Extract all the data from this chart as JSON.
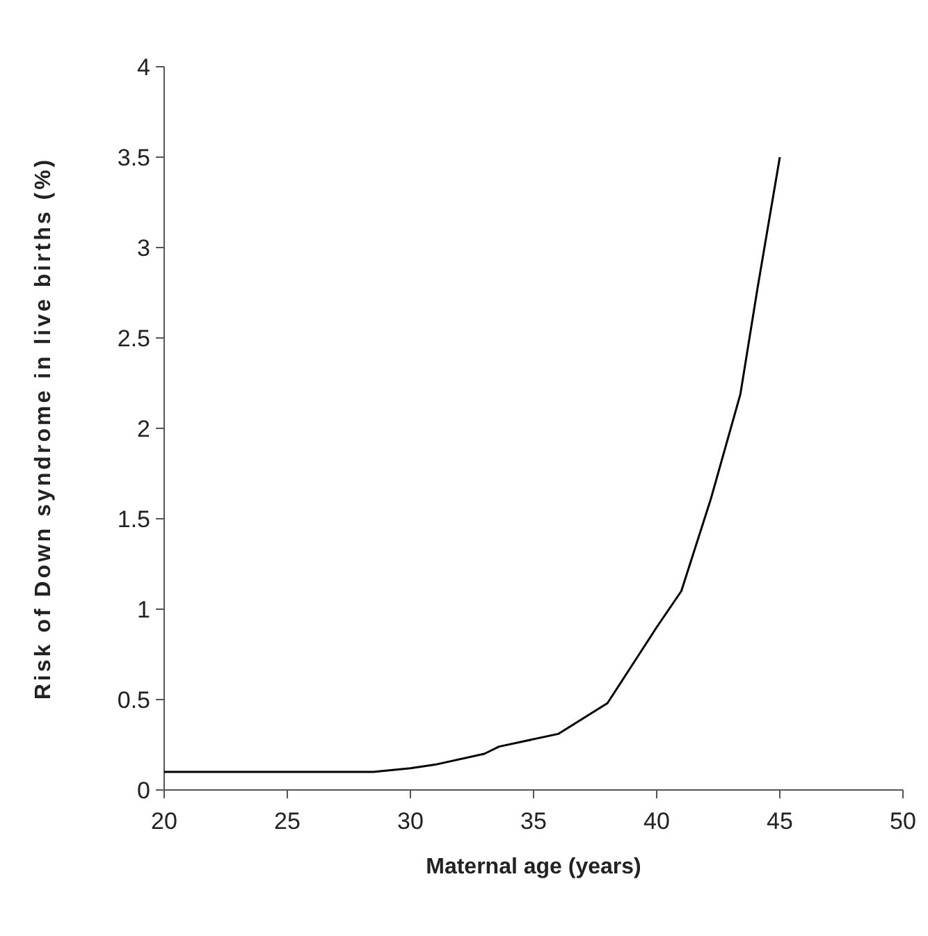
{
  "chart_data": {
    "type": "line",
    "xlabel": "Maternal age (years)",
    "ylabel": "Risk of Down syndrome in live births (%)",
    "x": [
      20,
      28.5,
      30,
      31,
      33,
      33.6,
      36,
      38,
      40,
      41,
      42.2,
      43.4,
      44.1,
      45
    ],
    "series": [
      {
        "color": "#000000",
        "values": [
          0.1,
          0.1,
          0.12,
          0.14,
          0.2,
          0.24,
          0.31,
          0.48,
          0.9,
          1.1,
          1.61,
          2.19,
          2.78,
          3.5
        ]
      }
    ],
    "xlim": [
      20,
      50
    ],
    "xticks": [
      20,
      25,
      30,
      35,
      40,
      45,
      50
    ],
    "ylim": [
      0,
      4
    ],
    "yticks": [
      0,
      0.5,
      1,
      1.5,
      2,
      2.5,
      3,
      3.5,
      4
    ],
    "grid": false,
    "marker": "none",
    "line_style": "solid"
  }
}
